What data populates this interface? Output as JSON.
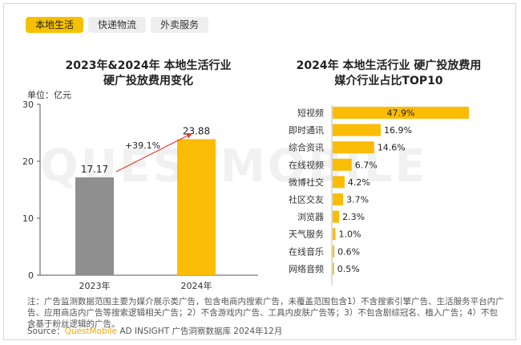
{
  "tabs": [
    {
      "label": "本地生活",
      "active": true
    },
    {
      "label": "快递物流",
      "active": false
    },
    {
      "label": "外卖服务",
      "active": false
    }
  ],
  "watermark": "QUESTMOBILE",
  "chart_data": [
    {
      "type": "bar",
      "title": "2023年&2024年 本地生活行业",
      "subtitle": "硬广投放费用变化",
      "ylabel": "单位：亿元",
      "ylim": [
        0,
        30
      ],
      "yticks": [
        "0",
        "10",
        "20",
        "30"
      ],
      "categories": [
        "2023年",
        "2024年"
      ],
      "values": [
        17.17,
        23.88
      ],
      "value_labels": [
        "17.17",
        "23.88"
      ],
      "colors": [
        "#8f8f8f",
        "#fbbc05"
      ],
      "annotation": "+39.1%",
      "grid": false
    },
    {
      "type": "bar",
      "orientation": "horizontal",
      "title": "2024年 本地生活行业 硬广投放费用",
      "subtitle": "媒介行业占比TOP10",
      "categories": [
        "短视频",
        "即时通讯",
        "综合资讯",
        "在线视频",
        "微博社交",
        "社区交友",
        "浏览器",
        "天气服务",
        "在线音乐",
        "网络音频"
      ],
      "values": [
        47.9,
        16.9,
        14.6,
        6.7,
        4.2,
        3.7,
        2.3,
        1.0,
        0.6,
        0.5
      ],
      "value_labels": [
        "47.9%",
        "16.9%",
        "14.6%",
        "6.7%",
        "4.2%",
        "3.7%",
        "2.3%",
        "1.0%",
        "0.6%",
        "0.5%"
      ],
      "color": "#fbbc05",
      "grid": false
    }
  ],
  "footer": {
    "note": "注：广告监测数据范围主要为媒介展示类广告，包含电商内搜索广告，未覆盖范围包含1）不含搜索引擎广告、生活服务平台内广告、应用商店内广告等搜索逻辑相关广告；2）不含游戏内广告、工具内皮肤广告等；3）不包含剧综冠名、植入广告；4）不包含基于粉丝逻辑的广告。",
    "source_prefix": "Source：",
    "source_brand": "QuestMobile",
    "source_rest": " AD INSIGHT 广告洞察数据库 2024年12月"
  }
}
